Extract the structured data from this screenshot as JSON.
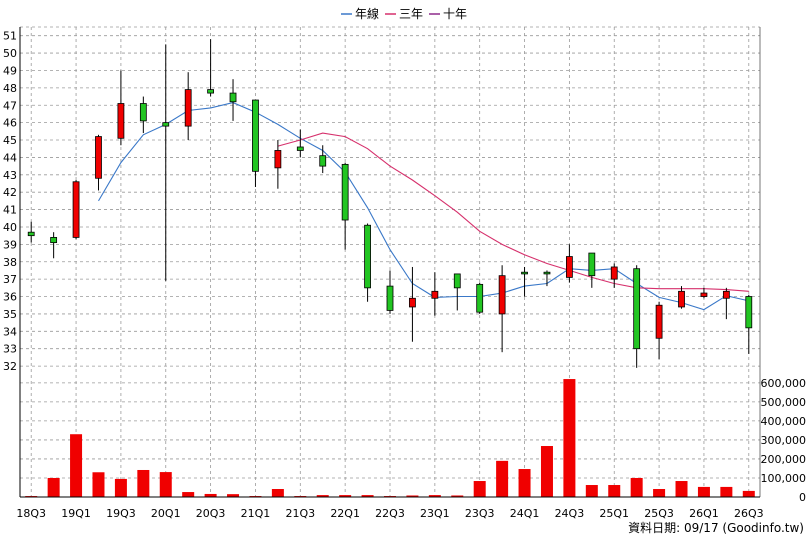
{
  "footer": {
    "text": "資料日期: 09/17 (Goodinfo.tw)"
  },
  "chart_data": {
    "type": "candlestick",
    "legend_position": "top-center",
    "x_tick_labels": [
      "18Q3",
      "19Q1",
      "19Q3",
      "20Q1",
      "20Q3",
      "21Q1",
      "21Q3",
      "22Q1",
      "22Q3",
      "23Q1",
      "23Q3",
      "24Q1",
      "24Q3",
      "25Q1",
      "25Q3",
      "26Q1",
      "26Q3"
    ],
    "price_axis": {
      "ticks": [
        32,
        33,
        34,
        35,
        36,
        37,
        38,
        39,
        40,
        41,
        42,
        43,
        44,
        45,
        46,
        47,
        48,
        49,
        50,
        51
      ],
      "range": [
        31.2,
        51.5
      ],
      "grid": true
    },
    "volume_axis": {
      "ticks": [
        0,
        100000,
        200000,
        300000,
        400000,
        500000,
        600000
      ],
      "range": [
        0,
        615000
      ],
      "grid": true
    },
    "colors": {
      "up": "#f00000",
      "down": "#22c522",
      "volume": "#f00000",
      "grid": "#9a9a9a"
    },
    "ohlc": [
      {
        "o": 39.7,
        "h": 40.3,
        "l": 39.1,
        "c": 39.5
      },
      {
        "o": 39.4,
        "h": 39.7,
        "l": 38.2,
        "c": 39.1
      },
      {
        "o": 39.4,
        "h": 42.7,
        "l": 39.3,
        "c": 42.6
      },
      {
        "o": 42.8,
        "h": 45.3,
        "l": 42.1,
        "c": 45.2
      },
      {
        "o": 45.1,
        "h": 49.0,
        "l": 44.7,
        "c": 47.1
      },
      {
        "o": 47.1,
        "h": 47.5,
        "l": 45.4,
        "c": 46.1
      },
      {
        "o": 46.0,
        "h": 50.5,
        "l": 36.9,
        "c": 45.8
      },
      {
        "o": 45.8,
        "h": 48.9,
        "l": 45.0,
        "c": 47.9
      },
      {
        "o": 47.9,
        "h": 50.8,
        "l": 47.5,
        "c": 47.7
      },
      {
        "o": 47.7,
        "h": 48.5,
        "l": 46.1,
        "c": 47.2
      },
      {
        "o": 47.3,
        "h": 47.3,
        "l": 42.3,
        "c": 43.2
      },
      {
        "o": 43.4,
        "h": 45.0,
        "l": 42.2,
        "c": 44.4
      },
      {
        "o": 44.6,
        "h": 45.6,
        "l": 44.0,
        "c": 44.4
      },
      {
        "o": 44.1,
        "h": 44.7,
        "l": 43.1,
        "c": 43.5
      },
      {
        "o": 43.6,
        "h": 43.7,
        "l": 38.7,
        "c": 40.4
      },
      {
        "o": 40.1,
        "h": 40.2,
        "l": 35.7,
        "c": 36.5
      },
      {
        "o": 36.6,
        "h": 37.5,
        "l": 35.0,
        "c": 35.2
      },
      {
        "o": 35.4,
        "h": 37.7,
        "l": 33.4,
        "c": 35.9
      },
      {
        "o": 35.9,
        "h": 37.4,
        "l": 34.9,
        "c": 36.3
      },
      {
        "o": 37.3,
        "h": 37.3,
        "l": 35.2,
        "c": 36.5
      },
      {
        "o": 36.7,
        "h": 36.8,
        "l": 35.0,
        "c": 35.1
      },
      {
        "o": 35.0,
        "h": 37.8,
        "l": 32.8,
        "c": 37.2
      },
      {
        "o": 37.4,
        "h": 37.7,
        "l": 36.0,
        "c": 37.3
      },
      {
        "o": 37.4,
        "h": 37.5,
        "l": 36.6,
        "c": 37.3
      },
      {
        "o": 37.1,
        "h": 39.0,
        "l": 36.8,
        "c": 38.3
      },
      {
        "o": 38.5,
        "h": 38.5,
        "l": 36.5,
        "c": 37.2
      },
      {
        "o": 37.0,
        "h": 37.9,
        "l": 36.5,
        "c": 37.7
      },
      {
        "o": 37.6,
        "h": 37.8,
        "l": 31.9,
        "c": 33.0
      },
      {
        "o": 33.6,
        "h": 35.7,
        "l": 32.4,
        "c": 35.5
      },
      {
        "o": 35.4,
        "h": 36.6,
        "l": 35.3,
        "c": 36.3
      },
      {
        "o": 36.0,
        "h": 36.5,
        "l": 35.9,
        "c": 36.2
      },
      {
        "o": 35.9,
        "h": 36.5,
        "l": 34.7,
        "c": 36.3
      },
      {
        "o": 36.0,
        "h": 36.1,
        "l": 32.7,
        "c": 34.2
      }
    ],
    "volume": [
      5000,
      100000,
      330000,
      130000,
      95000,
      142000,
      131000,
      26000,
      16000,
      15000,
      5000,
      42000,
      5000,
      10000,
      10000,
      10000,
      5000,
      8000,
      10000,
      8000,
      84000,
      190000,
      147000,
      268000,
      620000,
      63000,
      63000,
      100000,
      42000,
      84000,
      53000,
      53000,
      32000
    ],
    "series": [
      {
        "name": "年線",
        "color": "#3a78c8",
        "values": [
          null,
          null,
          null,
          41.5,
          43.7,
          45.3,
          45.9,
          46.7,
          46.85,
          47.15,
          46.6,
          45.9,
          45.1,
          44.4,
          43.15,
          41.1,
          38.7,
          36.75,
          35.95,
          36.0,
          36.0,
          36.2,
          36.6,
          36.75,
          37.6,
          37.5,
          37.6,
          36.75,
          35.95,
          35.65,
          35.25,
          36.05,
          35.75
        ]
      },
      {
        "name": "三年",
        "color": "#d6306c",
        "values": [
          null,
          null,
          null,
          null,
          null,
          null,
          null,
          null,
          null,
          null,
          null,
          44.65,
          45.0,
          45.4,
          45.2,
          44.5,
          43.5,
          42.7,
          41.8,
          40.85,
          39.75,
          39.0,
          38.4,
          37.9,
          37.5,
          37.1,
          36.75,
          36.5,
          36.45,
          36.45,
          36.45,
          36.4,
          36.3
        ]
      },
      {
        "name": "十年",
        "color": "#8e2a8a",
        "values": []
      }
    ]
  }
}
